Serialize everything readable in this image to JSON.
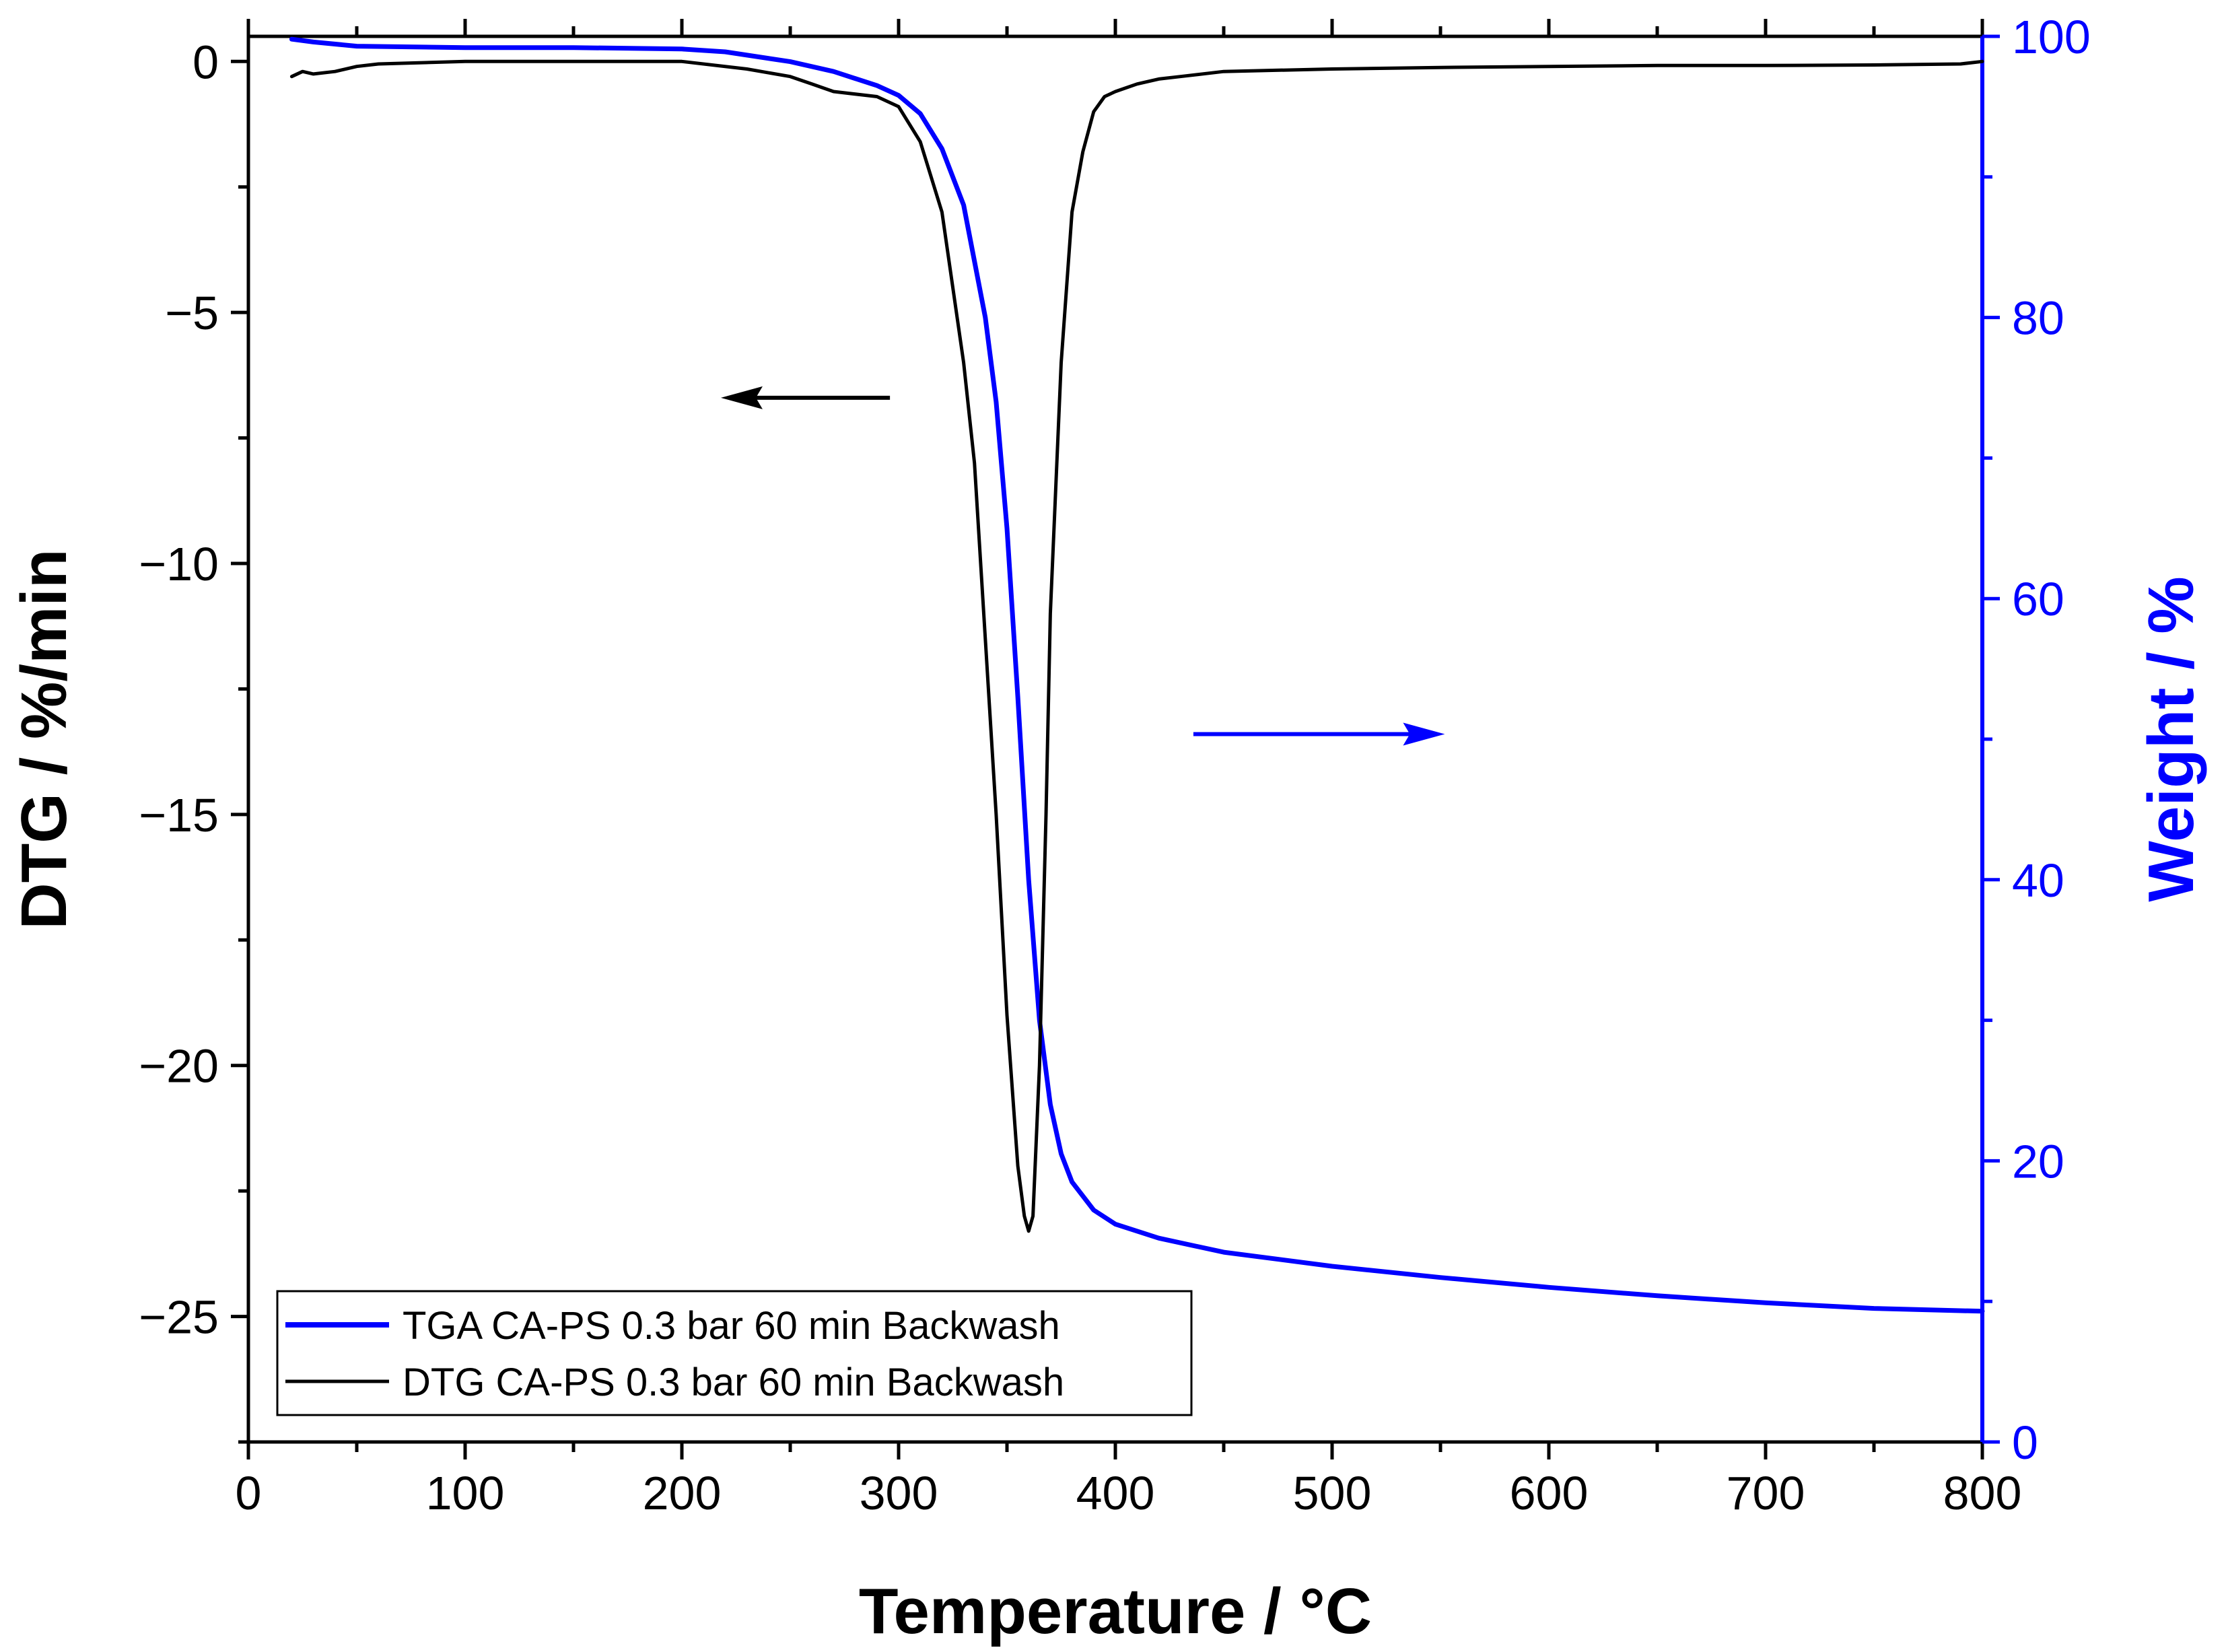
{
  "chart_data": {
    "type": "line",
    "xlabel": "Temperature / °C",
    "ylabel_left": "DTG / %/min",
    "ylabel_right": "Weight / %",
    "xlim": [
      0,
      800
    ],
    "ylim_left": [
      -27.5,
      0.5
    ],
    "ylim_right": [
      0,
      100
    ],
    "x_ticks": [
      "0",
      "100",
      "200",
      "300",
      "400",
      "500",
      "600",
      "700",
      "800"
    ],
    "y_left_ticks": [
      "0",
      "−5",
      "−10",
      "−15",
      "−20",
      "−25"
    ],
    "y_right_ticks": [
      "0",
      "20",
      "40",
      "60",
      "80",
      "100"
    ],
    "colors": {
      "tga": "#0000ff",
      "dtg": "#000000",
      "right_axis": "#0000ff"
    },
    "series": [
      {
        "name": "TGA CA-PS 0.3 bar 60 min Backwash",
        "axis": "right",
        "x": [
          20,
          30,
          50,
          100,
          150,
          200,
          220,
          250,
          270,
          290,
          300,
          310,
          320,
          330,
          340,
          345,
          350,
          355,
          360,
          365,
          370,
          375,
          380,
          390,
          400,
          420,
          450,
          500,
          550,
          600,
          650,
          700,
          750,
          800
        ],
        "y": [
          99.8,
          99.6,
          99.3,
          99.2,
          99.2,
          99.1,
          98.9,
          98.2,
          97.5,
          96.5,
          95.8,
          94.5,
          92.0,
          88.0,
          80.0,
          74.0,
          65.0,
          53.0,
          40.0,
          30.0,
          24.0,
          20.5,
          18.5,
          16.5,
          15.5,
          14.5,
          13.5,
          12.5,
          11.7,
          11.0,
          10.4,
          9.9,
          9.5,
          9.3
        ]
      },
      {
        "name": "DTG CA-PS 0.3 bar 60 min Backwash",
        "axis": "left",
        "x": [
          20,
          25,
          30,
          40,
          50,
          60,
          100,
          150,
          200,
          230,
          250,
          260,
          270,
          290,
          300,
          310,
          320,
          330,
          335,
          340,
          345,
          350,
          355,
          358,
          360,
          362,
          365,
          368,
          370,
          375,
          380,
          385,
          390,
          395,
          400,
          410,
          420,
          430,
          450,
          500,
          550,
          600,
          650,
          700,
          750,
          790,
          800
        ],
        "y": [
          -0.3,
          -0.2,
          -0.25,
          -0.2,
          -0.1,
          -0.05,
          0,
          0,
          0,
          -0.15,
          -0.3,
          -0.45,
          -0.6,
          -0.7,
          -0.9,
          -1.6,
          -3.0,
          -6.0,
          -8.0,
          -11.5,
          -15.0,
          -19.0,
          -22.0,
          -23.0,
          -23.3,
          -23.0,
          -20.0,
          -15.0,
          -11.0,
          -6.0,
          -3.0,
          -1.8,
          -1.0,
          -0.7,
          -0.6,
          -0.45,
          -0.35,
          -0.3,
          -0.2,
          -0.15,
          -0.12,
          -0.1,
          -0.08,
          -0.08,
          -0.07,
          -0.05,
          0.0
        ]
      }
    ],
    "annotations": [
      {
        "type": "arrow",
        "color": "#000000",
        "points_to": "left axis",
        "x_from": 296,
        "x_to": 218,
        "y_left": -6.7
      },
      {
        "type": "arrow",
        "color": "#0000ff",
        "points_to": "right axis",
        "x_from": 436,
        "x_to": 552,
        "y_left": -13.4
      }
    ],
    "legend": {
      "position": "bottom-left"
    }
  }
}
